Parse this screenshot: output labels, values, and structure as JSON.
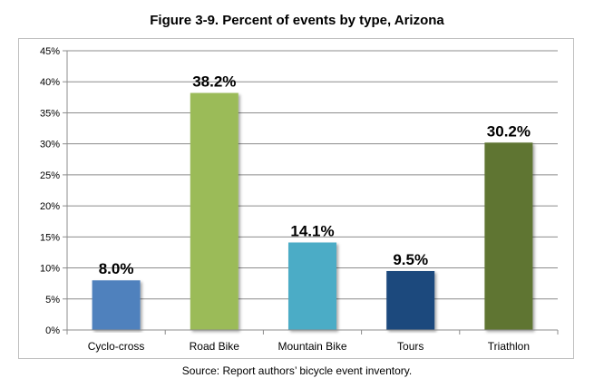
{
  "title": "Figure 3-9. Percent of events by type, Arizona",
  "caption": "Source: Report authors’ bicycle event inventory.",
  "chart_data": {
    "type": "bar",
    "title": "Figure 3-9. Percent of events by type, Arizona",
    "xlabel": "",
    "ylabel": "",
    "ylim": [
      0,
      45
    ],
    "yticks": [
      0,
      5,
      10,
      15,
      20,
      25,
      30,
      35,
      40,
      45
    ],
    "ytick_labels": [
      "0%",
      "5%",
      "10%",
      "15%",
      "20%",
      "25%",
      "30%",
      "35%",
      "40%",
      "45%"
    ],
    "categories": [
      "Cyclo-cross",
      "Road Bike",
      "Mountain Bike",
      "Tours",
      "Triathlon"
    ],
    "values": [
      8.0,
      38.2,
      14.1,
      9.5,
      30.2
    ],
    "data_labels": [
      "8.0%",
      "38.2%",
      "14.1%",
      "9.5%",
      "30.2%"
    ],
    "colors": [
      "#4f81bd",
      "#9bbb59",
      "#4bacc6",
      "#1f497d",
      "#5f7530"
    ],
    "grid": true,
    "legend": "none"
  }
}
